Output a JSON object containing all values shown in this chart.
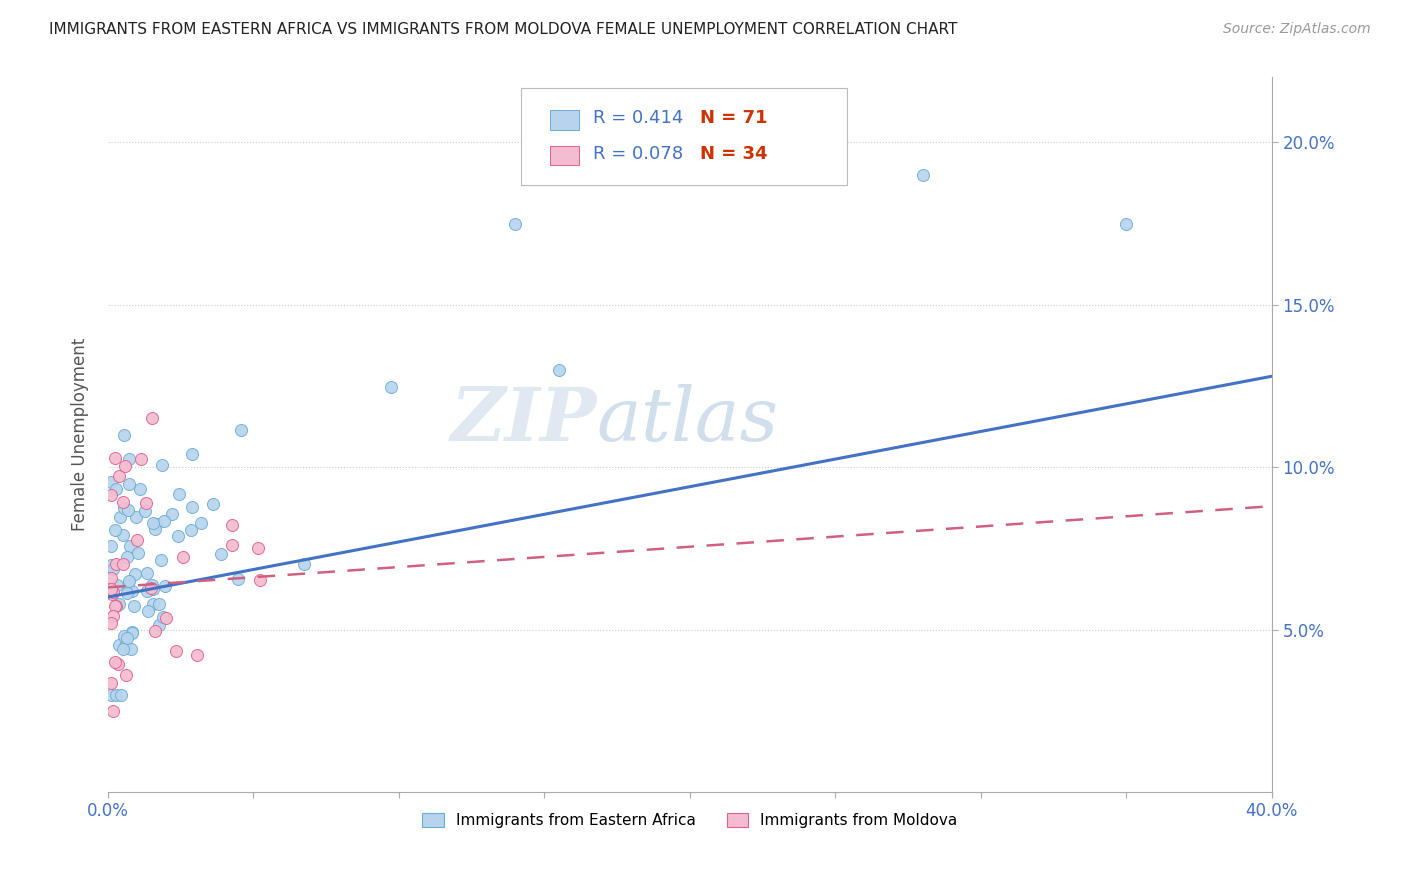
{
  "title": "IMMIGRANTS FROM EASTERN AFRICA VS IMMIGRANTS FROM MOLDOVA FEMALE UNEMPLOYMENT CORRELATION CHART",
  "source": "Source: ZipAtlas.com",
  "ylabel": "Female Unemployment",
  "watermark_zip": "ZIP",
  "watermark_atlas": "atlas",
  "legend_blue_r": "R = 0.414",
  "legend_blue_n": "N = 71",
  "legend_pink_r": "R = 0.078",
  "legend_pink_n": "N = 34",
  "legend_label1": "Immigrants from Eastern Africa",
  "legend_label2": "Immigrants from Moldova",
  "blue_color": "#b8d4ed",
  "blue_edge": "#6aadd5",
  "pink_color": "#f4bcd0",
  "pink_edge": "#e06090",
  "blue_line_color": "#4472c4",
  "pink_line_color": "#d06080",
  "r_color": "#4472c4",
  "n_color": "#e06040",
  "xmin": 0.0,
  "xmax": 0.4,
  "ymin": 0.0,
  "ymax": 0.22,
  "blue_trend_y_start": 0.06,
  "blue_trend_y_end": 0.128,
  "pink_trend_y_start": 0.063,
  "pink_trend_y_end": 0.088,
  "background_color": "#ffffff",
  "grid_color": "#cccccc",
  "title_color": "#222222",
  "source_color": "#999999",
  "axis_label_color": "#4472c4"
}
